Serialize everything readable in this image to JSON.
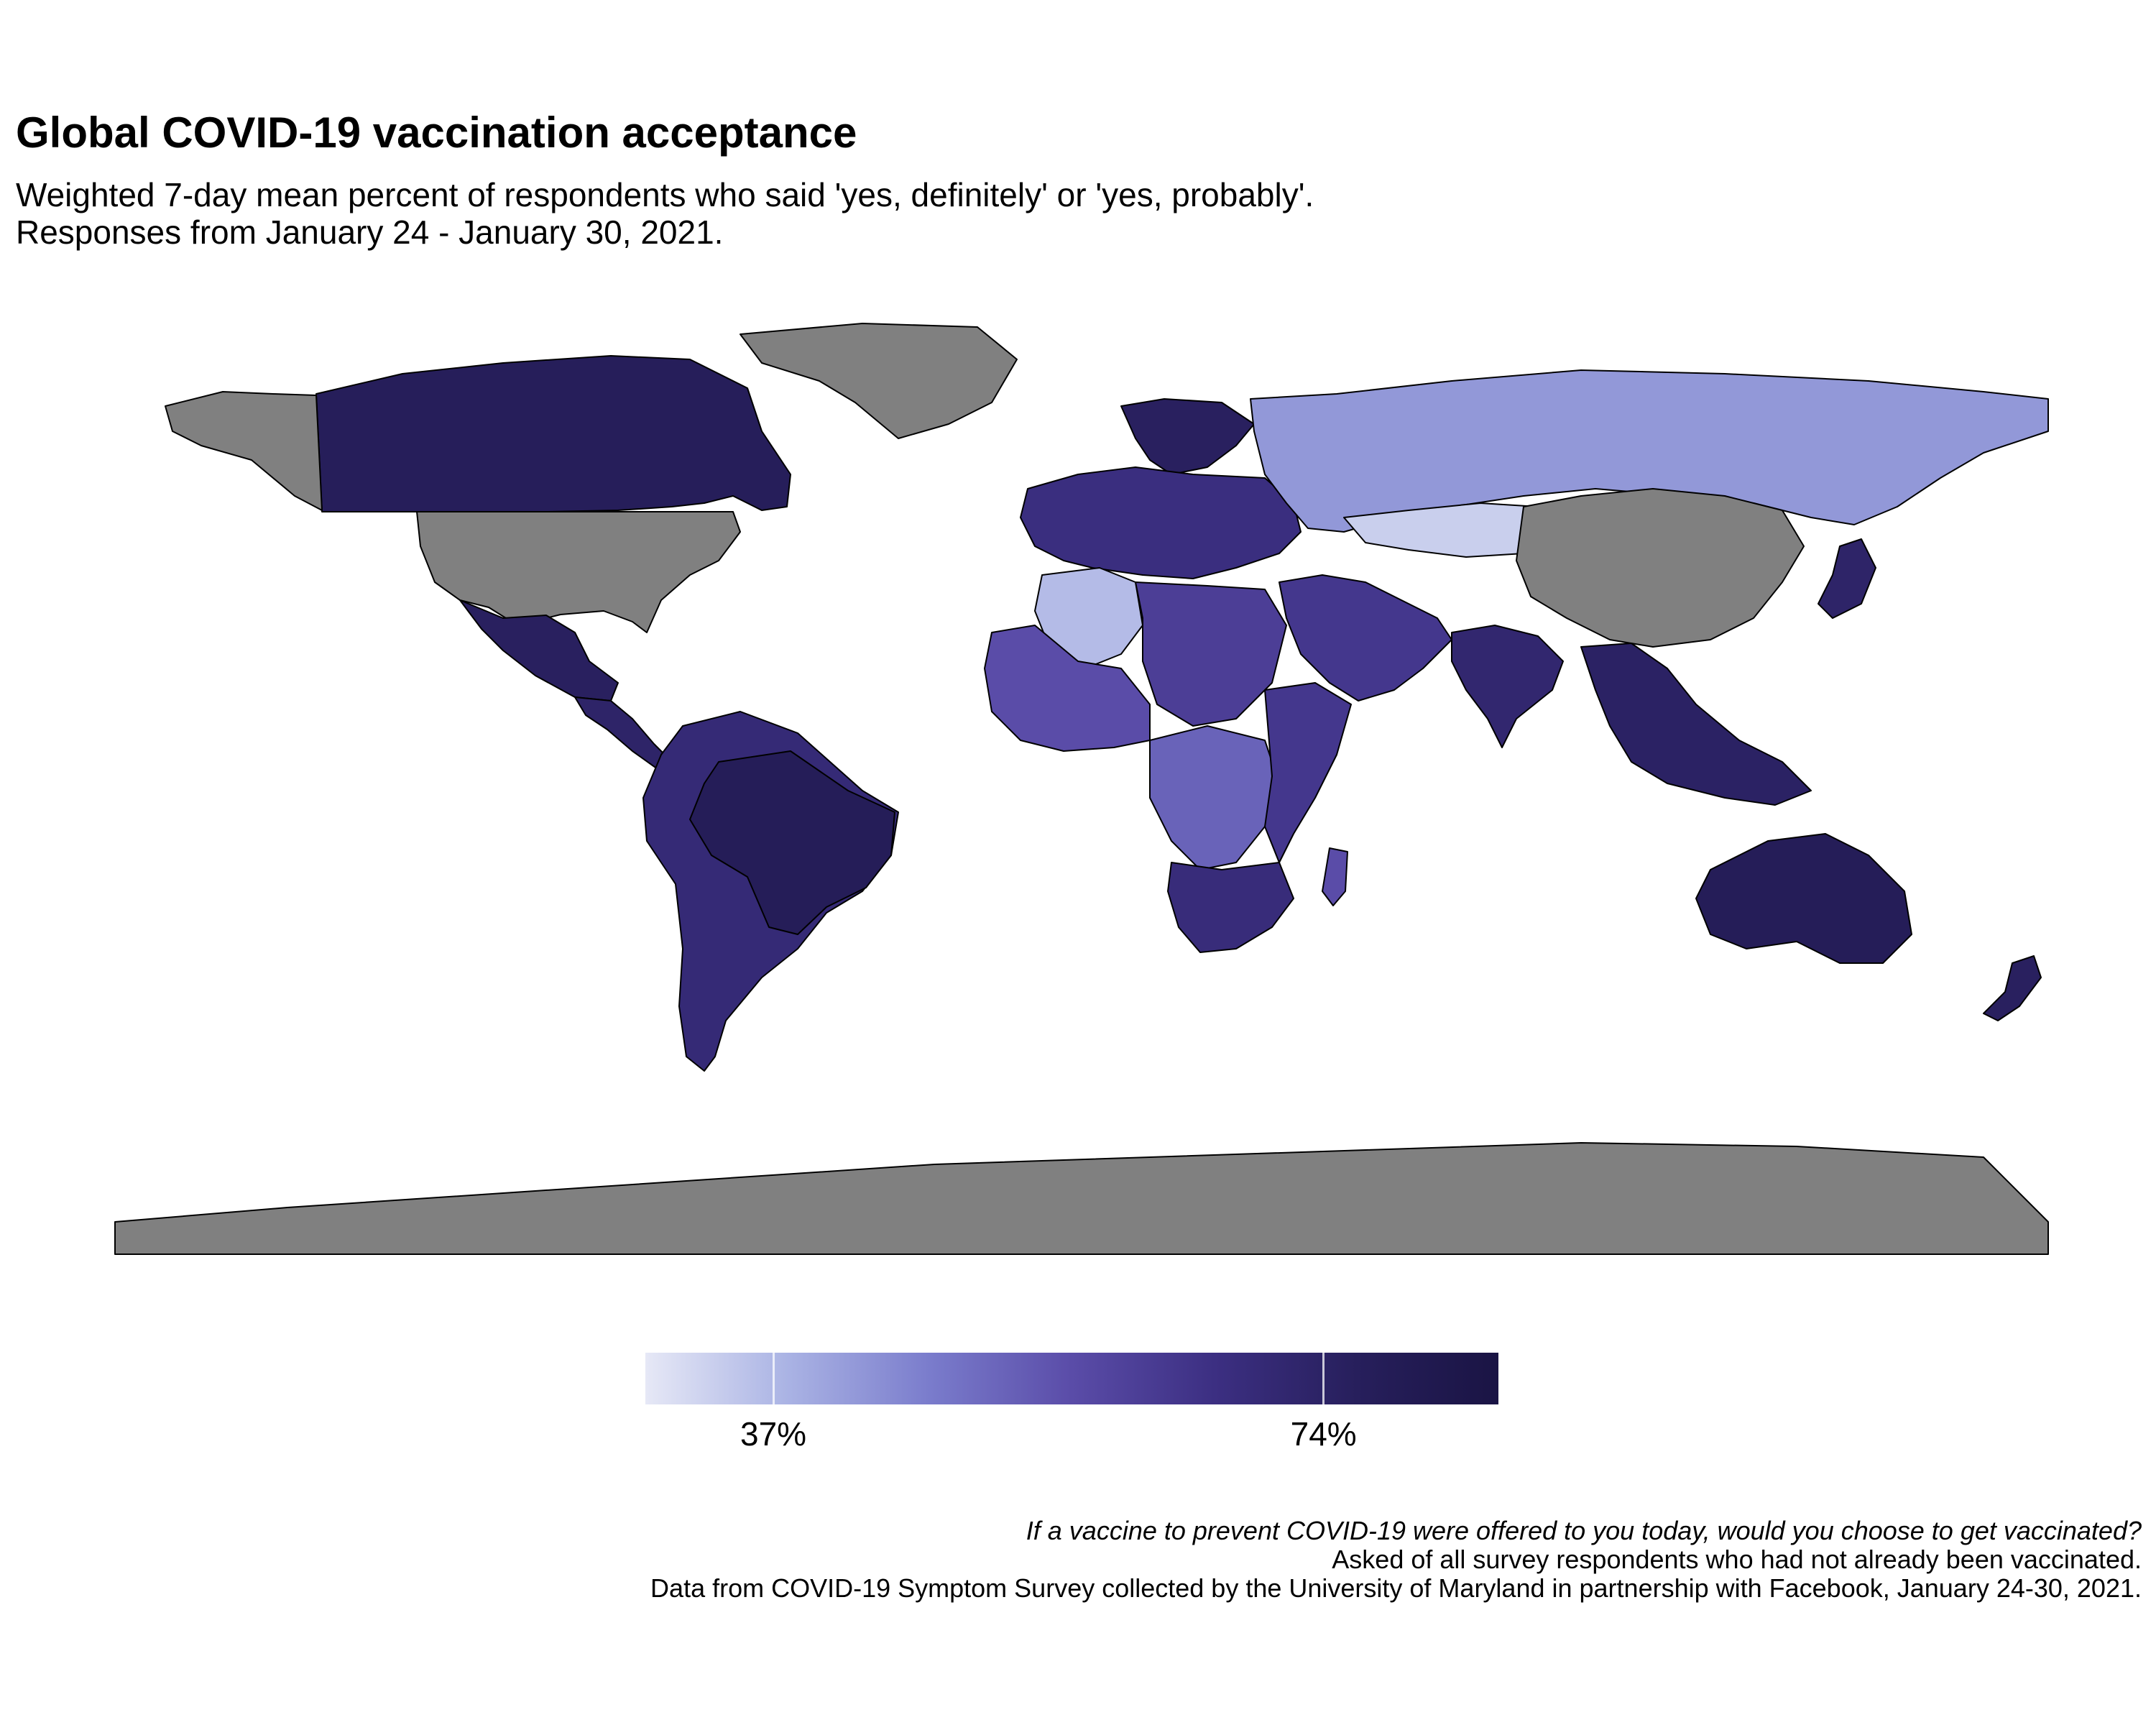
{
  "header": {
    "title": "Global COVID-19 vaccination acceptance",
    "subtitle_line1": "Weighted 7-day mean percent of respondents who said 'yes, definitely' or 'yes, probably'.",
    "subtitle_line2": "Responses from January 24 - January 30, 2021."
  },
  "map": {
    "projection": "equirectangular",
    "no_data_color": "#808080",
    "border_color": "#000000",
    "ocean_color": "#ffffff",
    "regions": [
      {
        "name": "Canada",
        "level": 0.85
      },
      {
        "name": "United States",
        "level": null
      },
      {
        "name": "Greenland",
        "level": null
      },
      {
        "name": "Alaska",
        "level": null
      },
      {
        "name": "Mexico",
        "level": 0.82
      },
      {
        "name": "Central America",
        "level": 0.78
      },
      {
        "name": "South America",
        "level": 0.72
      },
      {
        "name": "Brazil",
        "level": 0.86
      },
      {
        "name": "Northern Europe",
        "level": 0.82
      },
      {
        "name": "Europe",
        "level": 0.68
      },
      {
        "name": "Russia",
        "level": 0.25
      },
      {
        "name": "Kazakhstan",
        "level": 0.08
      },
      {
        "name": "China",
        "level": null
      },
      {
        "name": "India",
        "level": 0.75
      },
      {
        "name": "Middle East",
        "level": 0.62
      },
      {
        "name": "Algeria",
        "level": 0.14
      },
      {
        "name": "North Africa",
        "level": 0.58
      },
      {
        "name": "West Africa",
        "level": 0.5
      },
      {
        "name": "Central Africa",
        "level": 0.42
      },
      {
        "name": "East Africa",
        "level": 0.62
      },
      {
        "name": "Southern Africa",
        "level": 0.7
      },
      {
        "name": "Madagascar",
        "level": 0.5
      },
      {
        "name": "Southeast Asia",
        "level": 0.8
      },
      {
        "name": "Japan",
        "level": 0.78
      },
      {
        "name": "Australia",
        "level": 0.86
      },
      {
        "name": "New Zealand",
        "level": 0.82
      },
      {
        "name": "Antarctica",
        "level": null
      }
    ]
  },
  "legend": {
    "colors": [
      "#e6e8f6",
      "#aab3e4",
      "#7a7ccc",
      "#5a4ca8",
      "#3c2f82",
      "#271f5c",
      "#1a1444"
    ],
    "ticks": [
      {
        "label": "37%",
        "position": 0.15
      },
      {
        "label": "74%",
        "position": 0.795
      }
    ]
  },
  "caption": {
    "question": "If a vaccine to prevent COVID-19 were offered to you today, would you choose to get vaccinated?",
    "note": "Asked of all survey respondents who had not already been vaccinated.",
    "source": "Data from COVID-19 Symptom Survey collected by the University of Maryland in partnership with Facebook, January 24-30, 2021."
  }
}
